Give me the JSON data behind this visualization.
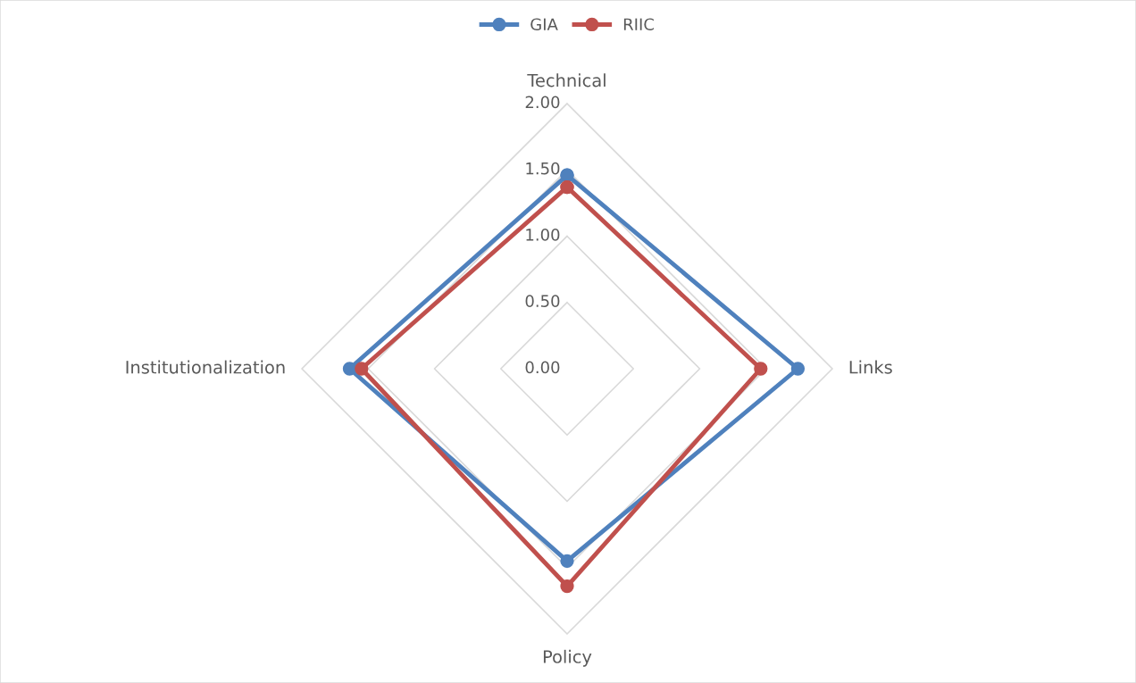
{
  "chart_data": {
    "type": "radar",
    "categories": [
      "Technical",
      "Links",
      "Policy",
      "Institutionalization"
    ],
    "series": [
      {
        "name": "GIA",
        "color": "#4f81bd",
        "values": [
          1.46,
          1.74,
          1.45,
          1.64
        ]
      },
      {
        "name": "RIIC",
        "color": "#c0504d",
        "values": [
          1.37,
          1.46,
          1.64,
          1.55
        ]
      }
    ],
    "ylim": [
      0,
      2
    ],
    "yticks": [
      {
        "value": 0,
        "label": "0.00"
      },
      {
        "value": 0.5,
        "label": "0.50"
      },
      {
        "value": 1,
        "label": "1.00"
      },
      {
        "value": 1.5,
        "label": "1.50"
      },
      {
        "value": 2,
        "label": "2.00"
      }
    ],
    "grid": true,
    "legend": "top",
    "marker": "circle",
    "line_style": "solid"
  }
}
